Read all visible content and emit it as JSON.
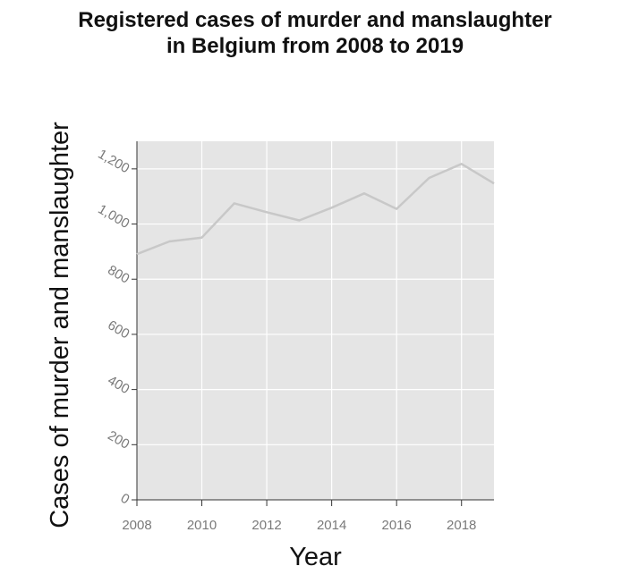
{
  "chart_data": {
    "type": "line",
    "title_lines": [
      "Registered cases of murder and manslaughter",
      "in Belgium from 2008 to 2019"
    ],
    "xlabel": "Year",
    "ylabel": "Cases of murder and manslaughter",
    "x": [
      2008,
      2009,
      2010,
      2011,
      2012,
      2013,
      2014,
      2015,
      2016,
      2017,
      2018,
      2019
    ],
    "y": [
      891,
      937,
      951,
      1075,
      1043,
      1013,
      1059,
      1111,
      1055,
      1167,
      1218,
      1147
    ],
    "xlim": [
      2008,
      2019
    ],
    "ylim": [
      0,
      1300
    ],
    "x_ticks": [
      2008,
      2010,
      2012,
      2014,
      2016,
      2018
    ],
    "y_ticks": [
      0,
      200,
      400,
      600,
      800,
      1000,
      1200
    ],
    "y_tick_labels": [
      "0",
      "200",
      "400",
      "600",
      "800",
      "1,000",
      "1,200"
    ],
    "grid": true,
    "colors": {
      "panel": "#e5e5e5",
      "grid": "#ffffff",
      "line": "#c8c8c8",
      "tick_text": "#7a7a7a"
    }
  }
}
